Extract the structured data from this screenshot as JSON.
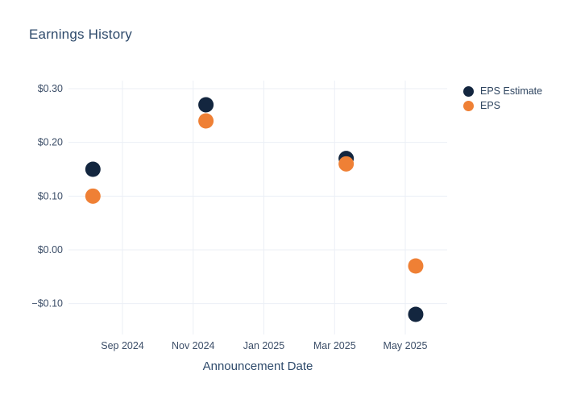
{
  "chart": {
    "title": "Earnings History"
  },
  "chart_data": {
    "type": "scatter",
    "title": "Earnings History",
    "xlabel": "Announcement Date",
    "ylabel": "",
    "grid": true,
    "legend_position": "right",
    "background_color": "#ffffff",
    "grid_color": "#ebeff6",
    "text_color": "#3c4e68",
    "x_ticks": [
      {
        "label": "Sep 2024",
        "date": "2024-09-01"
      },
      {
        "label": "Nov 2024",
        "date": "2024-11-01"
      },
      {
        "label": "Jan 2025",
        "date": "2025-01-01"
      },
      {
        "label": "Mar 2025",
        "date": "2025-03-01"
      },
      {
        "label": "May 2025",
        "date": "2025-05-01"
      }
    ],
    "y_ticks": [
      {
        "label": "$0.30",
        "value": 0.3
      },
      {
        "label": "$0.20",
        "value": 0.2
      },
      {
        "label": "$0.10",
        "value": 0.1
      },
      {
        "label": "$0.00",
        "value": 0.0
      },
      {
        "label": "−$0.10",
        "value": -0.1
      }
    ],
    "ylim": [
      -0.1575,
      0.315
    ],
    "x_dates": [
      "2024-08-06",
      "2024-11-12",
      "2025-03-11",
      "2025-05-10"
    ],
    "series": [
      {
        "name": "EPS Estimate",
        "color": "#13263f",
        "marker": "circle",
        "values": [
          0.15,
          0.27,
          0.17,
          -0.12
        ]
      },
      {
        "name": "EPS",
        "color": "#ef8035",
        "marker": "circle",
        "values": [
          0.1,
          0.24,
          0.16,
          -0.03
        ]
      }
    ]
  }
}
